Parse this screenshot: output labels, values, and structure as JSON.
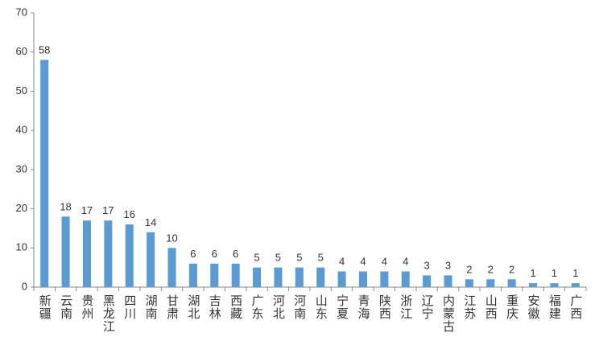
{
  "chart_data": {
    "type": "bar",
    "categories": [
      "新疆",
      "云南",
      "贵州",
      "黑龙江",
      "四川",
      "湖南",
      "甘肃",
      "湖北",
      "吉林",
      "西藏",
      "广东",
      "河北",
      "河南",
      "山东",
      "宁夏",
      "青海",
      "陕西",
      "浙江",
      "辽宁",
      "内蒙古",
      "江苏",
      "山西",
      "重庆",
      "安徽",
      "福建",
      "广西"
    ],
    "values": [
      58,
      18,
      17,
      17,
      16,
      14,
      10,
      6,
      6,
      6,
      5,
      5,
      5,
      5,
      4,
      4,
      4,
      4,
      3,
      3,
      2,
      2,
      2,
      1,
      1,
      1
    ],
    "color": "#5b9bd5",
    "ylim": [
      0,
      70
    ],
    "yticks": [
      0,
      10,
      20,
      30,
      40,
      50,
      60,
      70
    ],
    "grid": false
  }
}
